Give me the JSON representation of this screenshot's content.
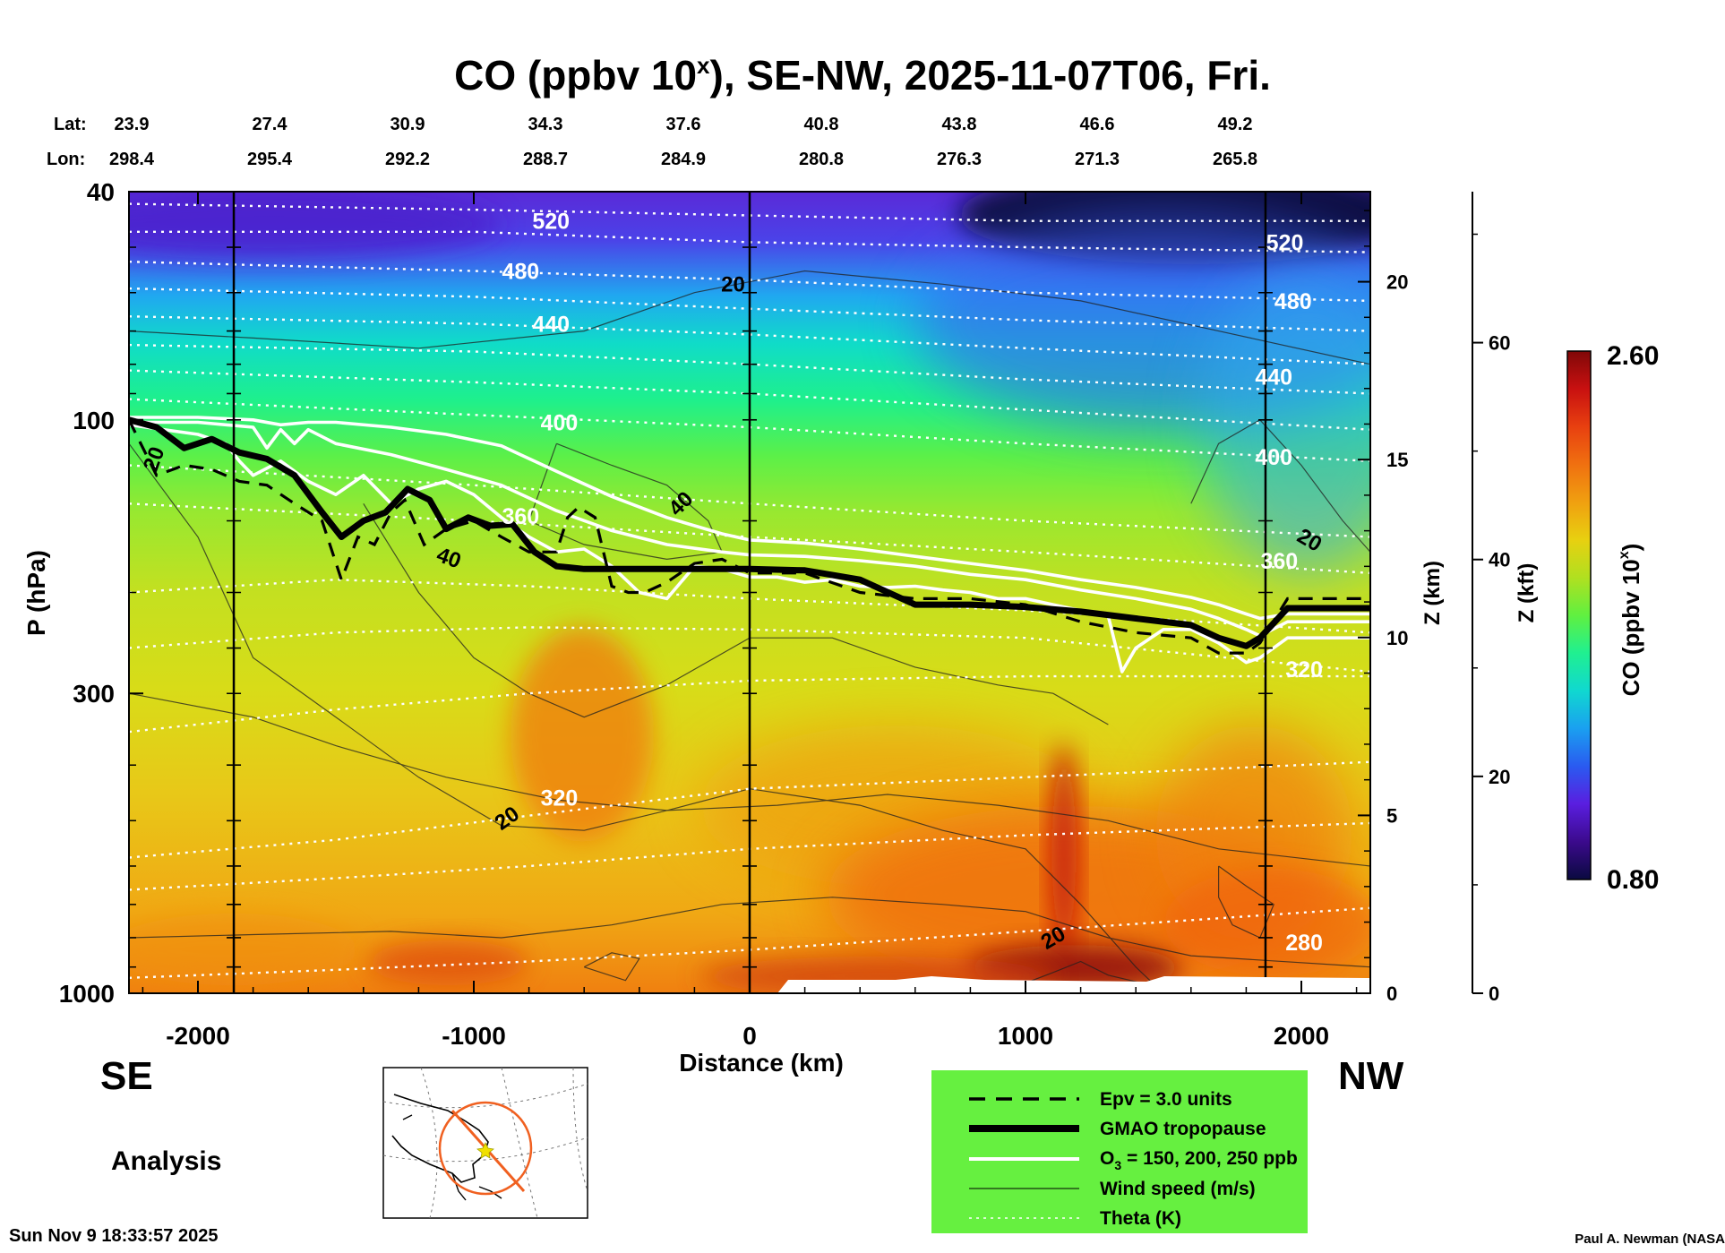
{
  "chart_data": {
    "type": "heatmap",
    "title": "CO (ppbv 10",
    "title_sup": "x",
    "title_rest": "), SE-NW, 2025-11-07T06, Fri.",
    "xlabel": "Distance (km)",
    "ylabel": "P (hPa)",
    "y2label": "Z (km)",
    "y3label": "Z (kft)",
    "xlim": [
      -2250,
      2250
    ],
    "xticks": [
      "-2000",
      "-1000",
      "0",
      "1000",
      "2000"
    ],
    "xtick_values": [
      -2000,
      -1000,
      0,
      1000,
      2000
    ],
    "y_scale": "log",
    "ylim": [
      1000,
      40
    ],
    "yticks": [
      "40",
      "100",
      "300",
      "1000"
    ],
    "ytick_values": [
      40,
      100,
      300,
      1000
    ],
    "z_km_ticks": [
      "0",
      "5",
      "10",
      "15",
      "20"
    ],
    "z_km_values": [
      0,
      5,
      10,
      15,
      20
    ],
    "z_kft_ticks": [
      "0",
      "20",
      "40",
      "60"
    ],
    "z_kft_values": [
      0,
      20,
      40,
      60
    ],
    "lat_label": "Lat:",
    "lon_label": "Lon:",
    "lat": [
      "23.9",
      "27.4",
      "30.9",
      "34.3",
      "37.6",
      "40.8",
      "43.8",
      "46.6",
      "49.2"
    ],
    "lon": [
      "298.4",
      "295.4",
      "292.2",
      "288.7",
      "284.9",
      "280.8",
      "276.3",
      "271.3",
      "265.8"
    ],
    "latlon_x": [
      -2250,
      -1750,
      -1250,
      -750,
      -250,
      250,
      750,
      1250,
      1750
    ],
    "vertical_lines_x": [
      -1870,
      0,
      1870
    ],
    "left_label": "SE",
    "right_label": "NW",
    "colorbar": {
      "label": "CO (ppbv 10",
      "label_sup": "x",
      "label_end": ")",
      "min": "0.80",
      "max": "2.60",
      "colors": [
        "#0a0a40",
        "#3b0a8c",
        "#5a1ee0",
        "#2a5af0",
        "#1aa0f0",
        "#10d8d0",
        "#20f090",
        "#60f040",
        "#b0e020",
        "#e8d010",
        "#f0a010",
        "#f07010",
        "#e84010",
        "#c81010",
        "#800808"
      ]
    },
    "theta_labels": [
      {
        "text": "520",
        "x": -720,
        "p": 45
      },
      {
        "text": "480",
        "x": -830,
        "p": 55
      },
      {
        "text": "440",
        "x": -720,
        "p": 68
      },
      {
        "text": "400",
        "x": -690,
        "p": 101
      },
      {
        "text": "360",
        "x": -830,
        "p": 147
      },
      {
        "text": "320",
        "x": -690,
        "p": 456
      },
      {
        "text": "520",
        "x": 1940,
        "p": 49
      },
      {
        "text": "480",
        "x": 1970,
        "p": 62
      },
      {
        "text": "440",
        "x": 1900,
        "p": 84
      },
      {
        "text": "400",
        "x": 1900,
        "p": 116
      },
      {
        "text": "360",
        "x": 1920,
        "p": 176
      },
      {
        "text": "320",
        "x": 2010,
        "p": 272
      },
      {
        "text": "280",
        "x": 2010,
        "p": 815
      }
    ],
    "wind_labels": [
      {
        "text": "20",
        "x": -2160,
        "p": 117,
        "rot": -70
      },
      {
        "text": "40",
        "x": -1090,
        "p": 174,
        "rot": 20
      },
      {
        "text": "40",
        "x": -250,
        "p": 140,
        "rot": -45
      },
      {
        "text": "20",
        "x": -60,
        "p": 58,
        "rot": 0
      },
      {
        "text": "20",
        "x": -880,
        "p": 495,
        "rot": -35
      },
      {
        "text": "20",
        "x": 1100,
        "p": 800,
        "rot": -30
      },
      {
        "text": "20",
        "x": 2030,
        "p": 162,
        "rot": 30
      }
    ],
    "series": [
      {
        "name": "GMAO tropopause",
        "x": [
          -2250,
          -2150,
          -2050,
          -1950,
          -1850,
          -1750,
          -1650,
          -1550,
          -1480,
          -1400,
          -1320,
          -1240,
          -1160,
          -1100,
          -1020,
          -940,
          -860,
          -780,
          -700,
          -600,
          -400,
          -200,
          0,
          200,
          400,
          600,
          800,
          1000,
          1200,
          1400,
          1600,
          1700,
          1800,
          1850,
          1950,
          2050,
          2250
        ],
        "p": [
          100,
          103,
          112,
          108,
          114,
          117,
          125,
          145,
          160,
          150,
          145,
          132,
          138,
          155,
          148,
          153,
          152,
          170,
          180,
          182,
          182,
          182,
          182,
          183,
          190,
          210,
          210,
          212,
          216,
          222,
          228,
          240,
          248,
          240,
          213,
          213,
          213
        ]
      },
      {
        "name": "Epv = 3.0 units",
        "x": [
          -2250,
          -2150,
          -2050,
          -1950,
          -1850,
          -1750,
          -1650,
          -1550,
          -1480,
          -1420,
          -1360,
          -1300,
          -1250,
          -1180,
          -1100,
          -1000,
          -900,
          -800,
          -700,
          -660,
          -620,
          -560,
          -500,
          -440,
          -380,
          -300,
          -200,
          -100,
          0,
          200,
          400,
          600,
          800,
          1000,
          1200,
          1400,
          1600,
          1700,
          1800,
          1850,
          1950,
          2050,
          2250
        ],
        "p": [
          100,
          125,
          120,
          122,
          128,
          130,
          140,
          150,
          190,
          160,
          165,
          145,
          138,
          165,
          155,
          150,
          160,
          170,
          170,
          148,
          142,
          148,
          195,
          200,
          200,
          192,
          178,
          175,
          185,
          185,
          200,
          205,
          205,
          210,
          225,
          235,
          240,
          255,
          255,
          245,
          205,
          205,
          205
        ]
      },
      {
        "name": "O3 = 150 ppb",
        "x": [
          -2250,
          -2000,
          -1800,
          -1700,
          -1600,
          -1500,
          -1300,
          -1100,
          -900,
          -700,
          -500,
          -300,
          -100,
          0,
          200,
          400,
          600,
          800,
          1000,
          1200,
          1400,
          1600,
          1700,
          1800,
          1850,
          1950,
          2050,
          2250
        ],
        "p": [
          99,
          99,
          100,
          102,
          101,
          101,
          103,
          106,
          111,
          123,
          136,
          148,
          158,
          162,
          164,
          168,
          173,
          178,
          183,
          190,
          196,
          204,
          210,
          218,
          222,
          218,
          218,
          218
        ]
      },
      {
        "name": "O3 = 200 ppb",
        "x": [
          -2250,
          -2000,
          -1800,
          -1750,
          -1700,
          -1650,
          -1600,
          -1500,
          -1300,
          -1100,
          -900,
          -700,
          -500,
          -300,
          -100,
          0,
          200,
          400,
          600,
          800,
          1000,
          1200,
          1400,
          1600,
          1700,
          1800,
          1850,
          1950,
          2050,
          2250
        ],
        "p": [
          101,
          101,
          103,
          112,
          104,
          110,
          104,
          110,
          115,
          122,
          130,
          144,
          156,
          165,
          170,
          172,
          173,
          176,
          180,
          186,
          190,
          198,
          205,
          214,
          222,
          232,
          238,
          225,
          225,
          225
        ]
      },
      {
        "name": "O3 = 250 ppb",
        "x": [
          -2250,
          -2000,
          -1900,
          -1850,
          -1800,
          -1700,
          -1600,
          -1500,
          -1400,
          -1300,
          -1200,
          -1100,
          -1000,
          -900,
          -800,
          -700,
          -600,
          -500,
          -400,
          -300,
          -200,
          -100,
          0,
          100,
          200,
          300,
          400,
          500,
          600,
          700,
          800,
          900,
          1000,
          1100,
          1200,
          1300,
          1350,
          1400,
          1500,
          1600,
          1700,
          1800,
          1850,
          1950,
          2050,
          2250
        ],
        "p": [
          102,
          106,
          110,
          118,
          125,
          118,
          128,
          135,
          125,
          140,
          132,
          128,
          135,
          148,
          160,
          170,
          168,
          180,
          200,
          205,
          180,
          182,
          188,
          188,
          192,
          190,
          195,
          196,
          195,
          198,
          200,
          205,
          205,
          210,
          215,
          220,
          275,
          250,
          232,
          232,
          245,
          265,
          260,
          240,
          240,
          240
        ]
      }
    ],
    "legend": {
      "epv": "Epv = 3.0 units",
      "tropopause": "GMAO tropopause",
      "o3_prefix": "O",
      "o3_sub": "3",
      "o3_rest": " = 150, 200, 250 ppb",
      "wind": "Wind speed (m/s)",
      "theta": "Theta (K)"
    }
  },
  "analysis_label": "Analysis",
  "timestamp": "Sun Nov  9 18:33:57 2025",
  "credit": "Paul A. Newman (NASA"
}
